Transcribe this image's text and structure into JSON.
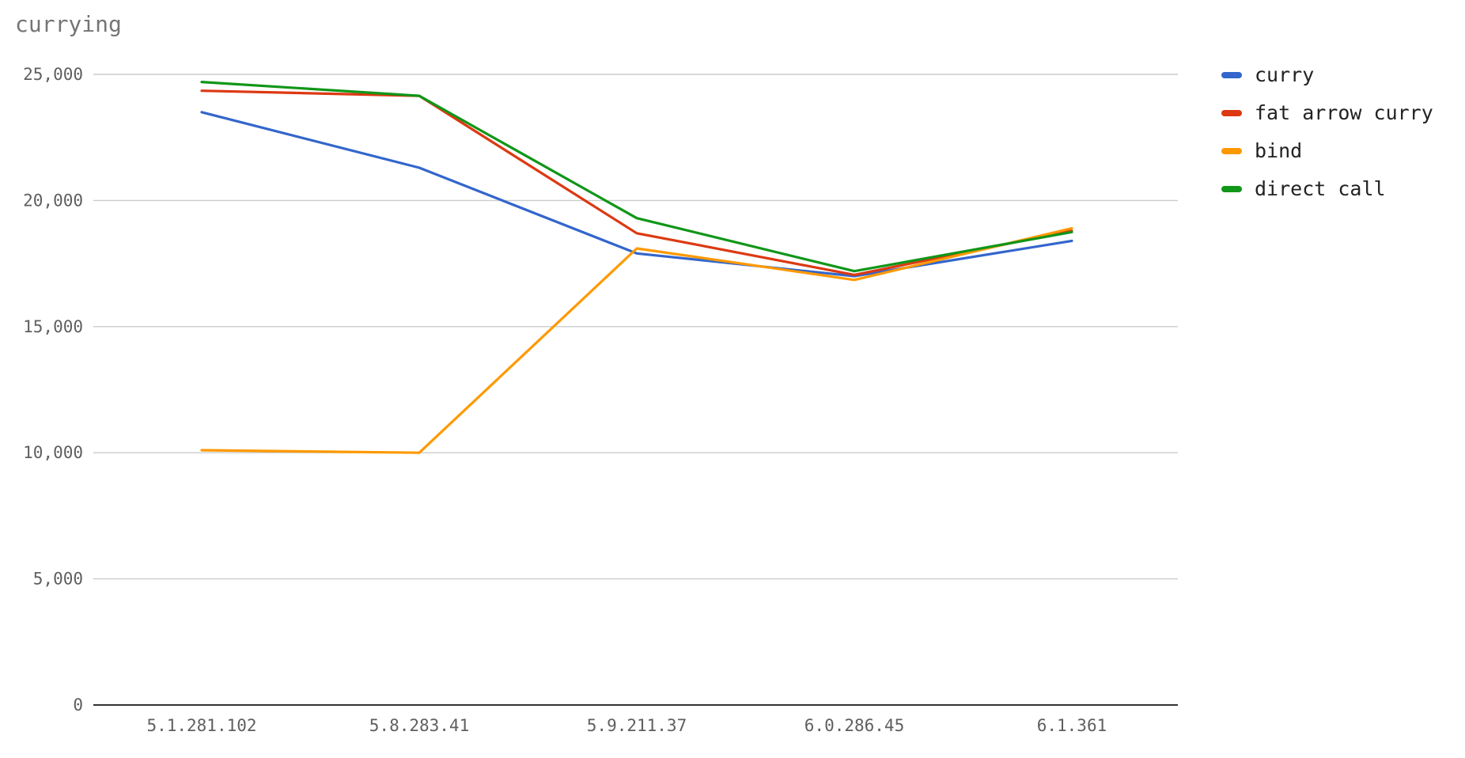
{
  "chart_data": {
    "type": "line",
    "title": "currying",
    "xlabel": "",
    "ylabel": "",
    "categories": [
      "5.1.281.102",
      "5.8.283.41",
      "5.9.211.37",
      "6.0.286.45",
      "6.1.361"
    ],
    "ylim": [
      0,
      25000
    ],
    "yticks": [
      0,
      5000,
      10000,
      15000,
      20000,
      25000
    ],
    "ytick_labels": [
      "0",
      "5,000",
      "10,000",
      "15,000",
      "20,000",
      "25,000"
    ],
    "grid": true,
    "legend_position": "right",
    "series": [
      {
        "name": "curry",
        "color": "#3366cc",
        "values": [
          23500,
          21300,
          17900,
          17000,
          18400
        ]
      },
      {
        "name": "fat arrow curry",
        "color": "#dc3912",
        "values": [
          24350,
          24150,
          18700,
          17050,
          18800
        ]
      },
      {
        "name": "bind",
        "color": "#ff9900",
        "values": [
          10100,
          10000,
          18100,
          16850,
          18900
        ]
      },
      {
        "name": "direct call",
        "color": "#109618",
        "values": [
          24700,
          24150,
          19300,
          17200,
          18750
        ]
      }
    ]
  }
}
